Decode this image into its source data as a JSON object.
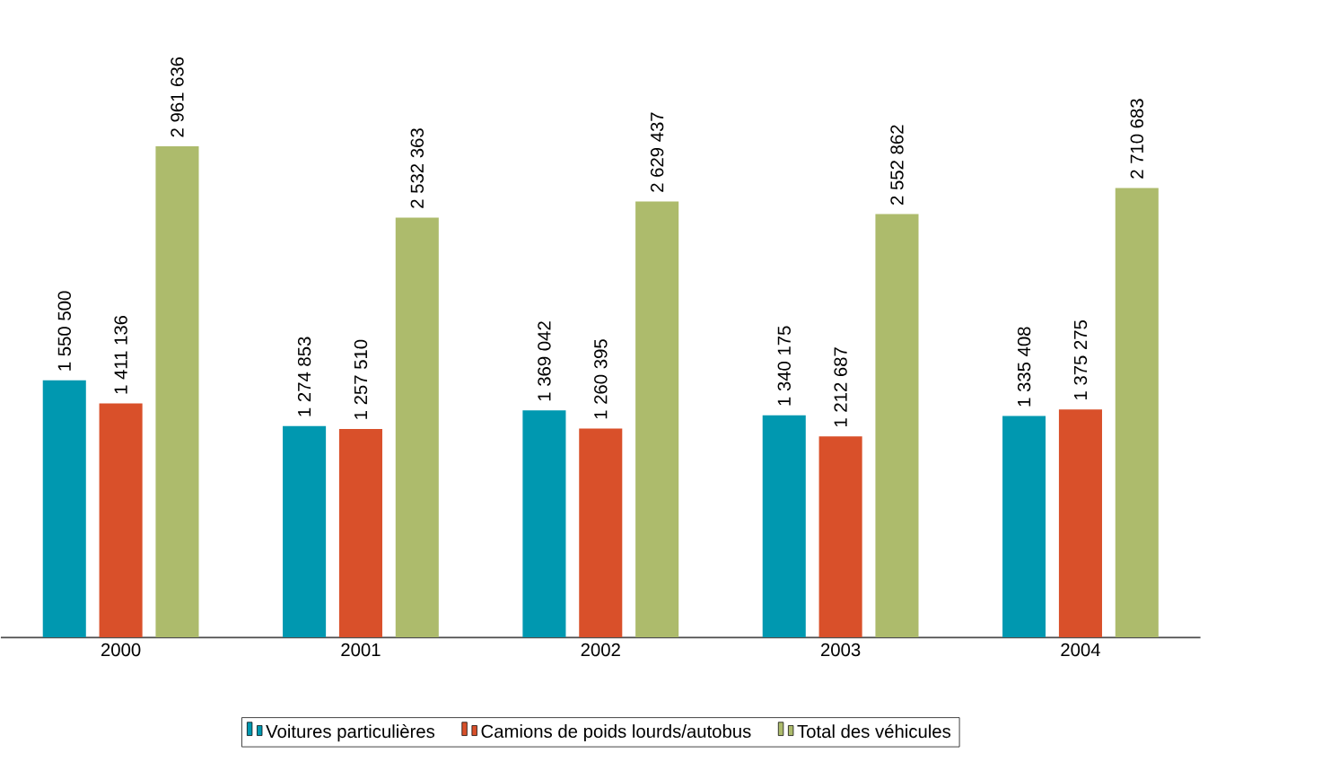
{
  "chart_data": {
    "type": "bar",
    "categories": [
      "2000",
      "2001",
      "2002",
      "2003",
      "2004"
    ],
    "series": [
      {
        "name": "Voitures particulières",
        "color": "#0098b0",
        "values": [
          1550500,
          1274853,
          1369042,
          1340175,
          1335408
        ],
        "value_labels": [
          "1 550 500",
          "1 274 853",
          "1 369 042",
          "1 340 175",
          "1 335 408"
        ]
      },
      {
        "name": "Camions de poids lourds/autobus",
        "color": "#d9502a",
        "values": [
          1411136,
          1257510,
          1260395,
          1212687,
          1375275
        ],
        "value_labels": [
          "1 411 136",
          "1 257 510",
          "1 260 395",
          "1 212 687",
          "1 375 275"
        ]
      },
      {
        "name": "Total des véhicules",
        "color": "#adbb6c",
        "values": [
          2961636,
          2532363,
          2629437,
          2552862,
          2710683
        ],
        "value_labels": [
          "2 961 636",
          "2 532 363",
          "2 629 437",
          "2 552 862",
          "2 710 683"
        ]
      }
    ],
    "legend": "bottom"
  }
}
